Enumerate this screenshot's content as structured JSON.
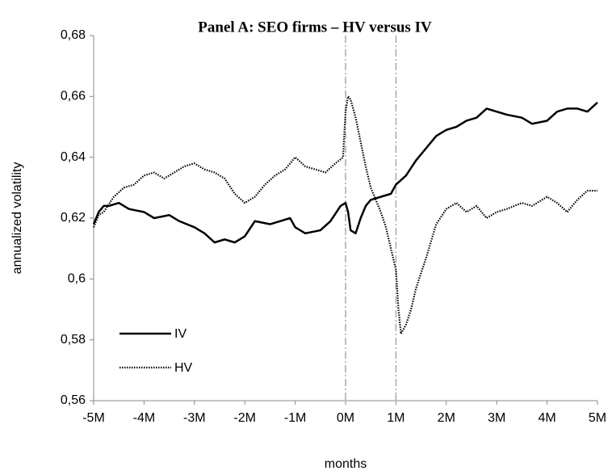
{
  "chart_data": {
    "type": "line",
    "title": "Panel A: SEO firms – HV versus IV",
    "x_label": "months",
    "y_label": "annualized  volatility",
    "xlim": [
      -5,
      5
    ],
    "xticks": [
      {
        "value": -5,
        "label": "-5M"
      },
      {
        "value": -4,
        "label": "-4M"
      },
      {
        "value": -3,
        "label": "-3M"
      },
      {
        "value": -2,
        "label": "-2M"
      },
      {
        "value": -1,
        "label": "-1M"
      },
      {
        "value": 0,
        "label": "0M"
      },
      {
        "value": 1,
        "label": "1M"
      },
      {
        "value": 2,
        "label": "2M"
      },
      {
        "value": 3,
        "label": "3M"
      },
      {
        "value": 4,
        "label": "4M"
      },
      {
        "value": 5,
        "label": "5M"
      }
    ],
    "ylim": [
      0.56,
      0.68
    ],
    "yticks": [
      {
        "value": 0.56,
        "label": "0,56"
      },
      {
        "value": 0.58,
        "label": "0,58"
      },
      {
        "value": 0.6,
        "label": "0,6"
      },
      {
        "value": 0.62,
        "label": "0,62"
      },
      {
        "value": 0.64,
        "label": "0,64"
      },
      {
        "value": 0.66,
        "label": "0,66"
      },
      {
        "value": 0.68,
        "label": "0,68"
      }
    ],
    "vlines": [
      0,
      1
    ],
    "grid": false,
    "legend": "lower left",
    "series": [
      {
        "name": "IV",
        "color": "#000000",
        "style": "solid",
        "x": [
          -5,
          -4.9,
          -4.8,
          -4.7,
          -4.5,
          -4.3,
          -4.0,
          -3.8,
          -3.5,
          -3.3,
          -3.0,
          -2.8,
          -2.6,
          -2.4,
          -2.2,
          -2.0,
          -1.8,
          -1.5,
          -1.3,
          -1.1,
          -1.0,
          -0.8,
          -0.5,
          -0.3,
          -0.1,
          0,
          0.05,
          0.1,
          0.2,
          0.3,
          0.4,
          0.5,
          0.7,
          0.9,
          1.0,
          1.2,
          1.4,
          1.6,
          1.8,
          2.0,
          2.2,
          2.4,
          2.6,
          2.8,
          3.0,
          3.2,
          3.5,
          3.7,
          4.0,
          4.2,
          4.4,
          4.6,
          4.8,
          5.0
        ],
        "values": [
          0.618,
          0.622,
          0.624,
          0.624,
          0.625,
          0.623,
          0.622,
          0.62,
          0.621,
          0.619,
          0.617,
          0.615,
          0.612,
          0.613,
          0.612,
          0.614,
          0.619,
          0.618,
          0.619,
          0.62,
          0.617,
          0.615,
          0.616,
          0.619,
          0.624,
          0.625,
          0.622,
          0.616,
          0.615,
          0.62,
          0.624,
          0.626,
          0.627,
          0.628,
          0.631,
          0.634,
          0.639,
          0.643,
          0.647,
          0.649,
          0.65,
          0.652,
          0.653,
          0.656,
          0.655,
          0.654,
          0.653,
          0.651,
          0.652,
          0.655,
          0.656,
          0.656,
          0.655,
          0.658
        ]
      },
      {
        "name": "HV",
        "color": "#000000",
        "style": "dotted",
        "x": [
          -5,
          -4.9,
          -4.8,
          -4.6,
          -4.4,
          -4.2,
          -4.0,
          -3.8,
          -3.6,
          -3.4,
          -3.2,
          -3.0,
          -2.8,
          -2.6,
          -2.4,
          -2.2,
          -2.0,
          -1.8,
          -1.6,
          -1.4,
          -1.2,
          -1.0,
          -0.8,
          -0.6,
          -0.4,
          -0.2,
          -0.05,
          0,
          0.05,
          0.1,
          0.2,
          0.3,
          0.4,
          0.5,
          0.6,
          0.7,
          0.8,
          0.9,
          1.0,
          1.05,
          1.1,
          1.2,
          1.3,
          1.4,
          1.6,
          1.8,
          2.0,
          2.2,
          2.4,
          2.6,
          2.8,
          3.0,
          3.2,
          3.5,
          3.7,
          4.0,
          4.2,
          4.4,
          4.6,
          4.8,
          5.0
        ],
        "values": [
          0.617,
          0.621,
          0.622,
          0.627,
          0.63,
          0.631,
          0.634,
          0.635,
          0.633,
          0.635,
          0.637,
          0.638,
          0.636,
          0.635,
          0.633,
          0.628,
          0.625,
          0.627,
          0.631,
          0.634,
          0.636,
          0.64,
          0.637,
          0.636,
          0.635,
          0.638,
          0.64,
          0.655,
          0.66,
          0.659,
          0.653,
          0.645,
          0.637,
          0.63,
          0.626,
          0.622,
          0.617,
          0.61,
          0.603,
          0.59,
          0.582,
          0.585,
          0.59,
          0.597,
          0.607,
          0.618,
          0.623,
          0.625,
          0.622,
          0.624,
          0.62,
          0.622,
          0.623,
          0.625,
          0.624,
          0.627,
          0.625,
          0.622,
          0.626,
          0.629,
          0.629
        ]
      }
    ]
  }
}
